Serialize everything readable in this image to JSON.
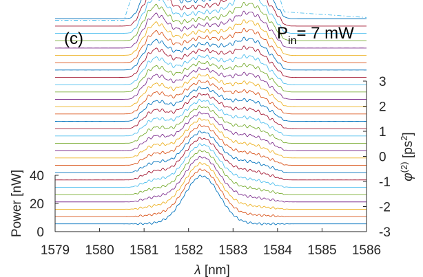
{
  "panel_label": "(c)",
  "annotation": {
    "main": "P",
    "sub": "in",
    "rest": "= 7 mW"
  },
  "chart_data": {
    "type": "line",
    "xlabel_symbol": "λ",
    "xlabel_unit": " [nm]",
    "ylabel_left": "Power [nW]",
    "ylabel_right_symbol": "φ",
    "ylabel_right_sup": "(2)",
    "ylabel_right_unit": " [ps",
    "ylabel_right_unit_sup": "2",
    "ylabel_right_unit_close": "]",
    "xlim": [
      1579,
      1586
    ],
    "x_ticks": [
      1579,
      1580,
      1581,
      1582,
      1583,
      1584,
      1585,
      1586
    ],
    "ylim_left": [
      0,
      40
    ],
    "y_ticks_left": [
      0,
      20,
      40
    ],
    "ylim_right": [
      -3,
      3
    ],
    "y_ticks_right": [
      -3,
      -2,
      -1,
      0,
      1,
      2,
      3
    ],
    "grid": false,
    "trace_count": 29,
    "trace_spacing_nW": 5.2,
    "band_start_nm": 1580.8,
    "band_end_nm": 1584.1,
    "envelope_style": "dash-dot",
    "colors": [
      "#0072BD",
      "#D95319",
      "#EDB120",
      "#7E2F8E",
      "#77AC30",
      "#4DBEEE",
      "#A2142F"
    ],
    "envelope_color": "#4DBEEE"
  }
}
